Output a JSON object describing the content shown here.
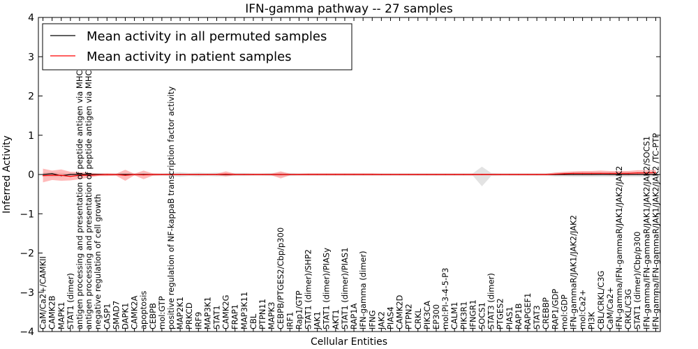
{
  "chart_data": {
    "type": "line",
    "title": "IFN-gamma pathway -- 27 samples",
    "xlabel": "Cellular Entities",
    "ylabel": "Inferred Activity",
    "ylim": [
      -4,
      4
    ],
    "yticks": [
      -4,
      -3,
      -2,
      -1,
      0,
      1,
      2,
      3,
      4
    ],
    "grid": false,
    "legend_position": "top-left",
    "colors": {
      "permuted": "#000000",
      "patient": "#ff0000",
      "patient_band": "#ff6666",
      "permuted_band": "#b0b0b0"
    },
    "categories": [
      "CaM/Ca2+/CAMKII",
      "CAMK2B",
      "MAPK1",
      "STAT1 (dimer)",
      "antigen processing and presentation of peptide antigen via MHC class I",
      "antigen processing and presentation of peptide antigen via MHC class II",
      "negative regulation of cell growth",
      "CASP1",
      "SMAD7",
      "DAPK1",
      "CAMK2A",
      "apoptosis",
      "CEBPB",
      "mol:GTP",
      "positive regulation of NF-kappaB transcription factor activity",
      "MAP2K1",
      "PRKCD",
      "IRF9",
      "MAP3K1",
      "STAT1",
      "CAMK2G",
      "FRAP1",
      "MAP3K11",
      "CBL",
      "PTPN11",
      "MAPK3",
      "CEBPB/PTGES2/Cbp/p300",
      "IRF1",
      "Rap1/GTP",
      "STAT1 (dimer)/SHP2",
      "JAK1",
      "STAT1 (dimer)/PIASy",
      "AKT1",
      "STAT1 (dimer)/PIAS1",
      "RAP1A",
      "IFN-gamma (dimer)",
      "IFNG",
      "JAK2",
      "PIAS4",
      "CAMK2D",
      "PTPN2",
      "CRKL",
      "PIK3CA",
      "EP300",
      "mol:PI-3-4-5-P3",
      "CALM1",
      "PIK3R1",
      "IFNGR1",
      "SOCS1",
      "STAT3 (dimer)",
      "PTGES2",
      "PIAS1",
      "RAP1B",
      "RAPGEF1",
      "STAT3",
      "CREBBP",
      "RAP1/GDP",
      "mol:GDP",
      "IFN-gammaR/JAK1/JAK2/JAK2",
      "mol:Ca2+",
      "PI3K",
      "CBL/CRKL/C3G",
      "CaM/Ca2+",
      "IFN-gamma/IFN-gammaR/JAK1/JAK2/JAK2",
      "CRKL/C3G",
      "STAT1 (dimer)/Cbp/p300",
      "IFN-gamma/IFN-gammaR/JAK1/JAK2/JAK2/SOCS1",
      "IFN-gamma/IFN-gammaR/JAK1/JAK2/JAK2 /TC-PTP"
    ],
    "series": [
      {
        "name": "Mean activity in all permuted samples",
        "values": [
          0,
          0.02,
          -0.03,
          0,
          0,
          0,
          0,
          0,
          0,
          0,
          0,
          0,
          0,
          0,
          0,
          0,
          0,
          0,
          0,
          0,
          0,
          0,
          0,
          0,
          0,
          0,
          0,
          0,
          0,
          0,
          0,
          0,
          0,
          0,
          0,
          0,
          0,
          0,
          0,
          0,
          0,
          0,
          0,
          0,
          0,
          0,
          0,
          0,
          0,
          0,
          0,
          0,
          0,
          0,
          0,
          0,
          0,
          0,
          0,
          0,
          0,
          0,
          0,
          0,
          0,
          0,
          0,
          0
        ],
        "upper": [
          0.05,
          0.06,
          0.04,
          0.04,
          0.04,
          0.04,
          0.03,
          0.03,
          0.03,
          0.04,
          0.03,
          0.03,
          0.03,
          0.03,
          0.04,
          0.06,
          0.04,
          0.05,
          0.04,
          0.05,
          0.04,
          0.04,
          0.04,
          0.03,
          0.03,
          0.04,
          0.05,
          0.04,
          0.03,
          0.03,
          0.03,
          0.03,
          0.03,
          0.03,
          0.03,
          0.03,
          0.03,
          0.03,
          0.03,
          0.03,
          0.03,
          0.03,
          0.03,
          0.03,
          0.03,
          0.03,
          0.03,
          0.03,
          0.2,
          0.04,
          0.03,
          0.03,
          0.03,
          0.03,
          0.03,
          0.03,
          0.05,
          0.05,
          0.06,
          0.06,
          0.06,
          0.06,
          0.06,
          0.06,
          0.06,
          0.06,
          0.06,
          0.06
        ],
        "lower": [
          -0.05,
          -0.06,
          -0.06,
          -0.04,
          -0.04,
          -0.04,
          -0.03,
          -0.03,
          -0.03,
          -0.04,
          -0.03,
          -0.03,
          -0.03,
          -0.03,
          -0.04,
          -0.06,
          -0.04,
          -0.05,
          -0.04,
          -0.05,
          -0.04,
          -0.04,
          -0.04,
          -0.03,
          -0.03,
          -0.04,
          -0.05,
          -0.04,
          -0.03,
          -0.03,
          -0.03,
          -0.03,
          -0.03,
          -0.03,
          -0.03,
          -0.03,
          -0.03,
          -0.03,
          -0.03,
          -0.03,
          -0.03,
          -0.03,
          -0.03,
          -0.03,
          -0.03,
          -0.03,
          -0.03,
          -0.03,
          -0.3,
          -0.04,
          -0.03,
          -0.03,
          -0.03,
          -0.03,
          -0.03,
          -0.03,
          -0.05,
          -0.05,
          -0.06,
          -0.06,
          -0.06,
          -0.06,
          -0.06,
          -0.06,
          -0.06,
          -0.06,
          -0.06,
          -0.06
        ]
      },
      {
        "name": "Mean activity in patient samples",
        "values": [
          -0.03,
          -0.02,
          -0.02,
          -0.05,
          -0.02,
          -0.02,
          -0.01,
          0,
          0,
          -0.02,
          0,
          -0.01,
          0,
          0,
          0,
          0,
          0,
          0,
          0,
          0,
          0.01,
          0,
          0,
          0,
          0,
          0,
          0,
          0,
          0,
          0,
          0,
          0,
          0,
          0,
          0,
          0,
          0,
          0,
          0,
          0,
          0,
          0,
          0,
          0,
          0,
          0,
          0,
          0,
          0,
          0,
          0,
          0,
          0,
          0,
          0,
          0,
          0.01,
          0.02,
          0.03,
          0.03,
          0.03,
          0.03,
          0.03,
          0.03,
          0.03,
          0.04,
          0.04,
          0.05
        ],
        "upper": [
          0.15,
          0.1,
          0.13,
          0.07,
          0.06,
          0.05,
          0.03,
          0.03,
          0.02,
          0.12,
          0.02,
          0.1,
          0.03,
          0.02,
          0.02,
          0.02,
          0.02,
          0.02,
          0.02,
          0.02,
          0.08,
          0.02,
          0.02,
          0.02,
          0.02,
          0.02,
          0.08,
          0.02,
          0.02,
          0.03,
          0.03,
          0.03,
          0.03,
          0.03,
          0.03,
          0.03,
          0.03,
          0.02,
          0.02,
          0.02,
          0.02,
          0.02,
          0.02,
          0.02,
          0.02,
          0.02,
          0.02,
          0.02,
          0.02,
          0.02,
          0.02,
          0.02,
          0.02,
          0.02,
          0.02,
          0.02,
          0.05,
          0.07,
          0.08,
          0.09,
          0.09,
          0.1,
          0.09,
          0.09,
          0.09,
          0.11,
          0.11,
          0.12
        ],
        "lower": [
          -0.2,
          -0.14,
          -0.16,
          -0.15,
          -0.12,
          -0.08,
          -0.04,
          -0.04,
          -0.03,
          -0.16,
          -0.02,
          -0.12,
          -0.03,
          -0.02,
          -0.02,
          -0.02,
          -0.02,
          -0.02,
          -0.02,
          -0.02,
          -0.05,
          -0.02,
          -0.02,
          -0.02,
          -0.02,
          -0.02,
          -0.1,
          -0.02,
          -0.02,
          -0.02,
          -0.02,
          -0.02,
          -0.02,
          -0.02,
          -0.02,
          -0.02,
          -0.02,
          -0.02,
          -0.02,
          -0.02,
          -0.02,
          -0.02,
          -0.02,
          -0.02,
          -0.02,
          -0.02,
          -0.02,
          -0.02,
          -0.02,
          -0.02,
          -0.02,
          -0.02,
          -0.02,
          -0.02,
          -0.02,
          -0.02,
          -0.02,
          -0.02,
          -0.02,
          -0.02,
          -0.02,
          -0.01,
          -0.02,
          -0.02,
          -0.02,
          -0.01,
          -0.01,
          0
        ]
      }
    ]
  }
}
